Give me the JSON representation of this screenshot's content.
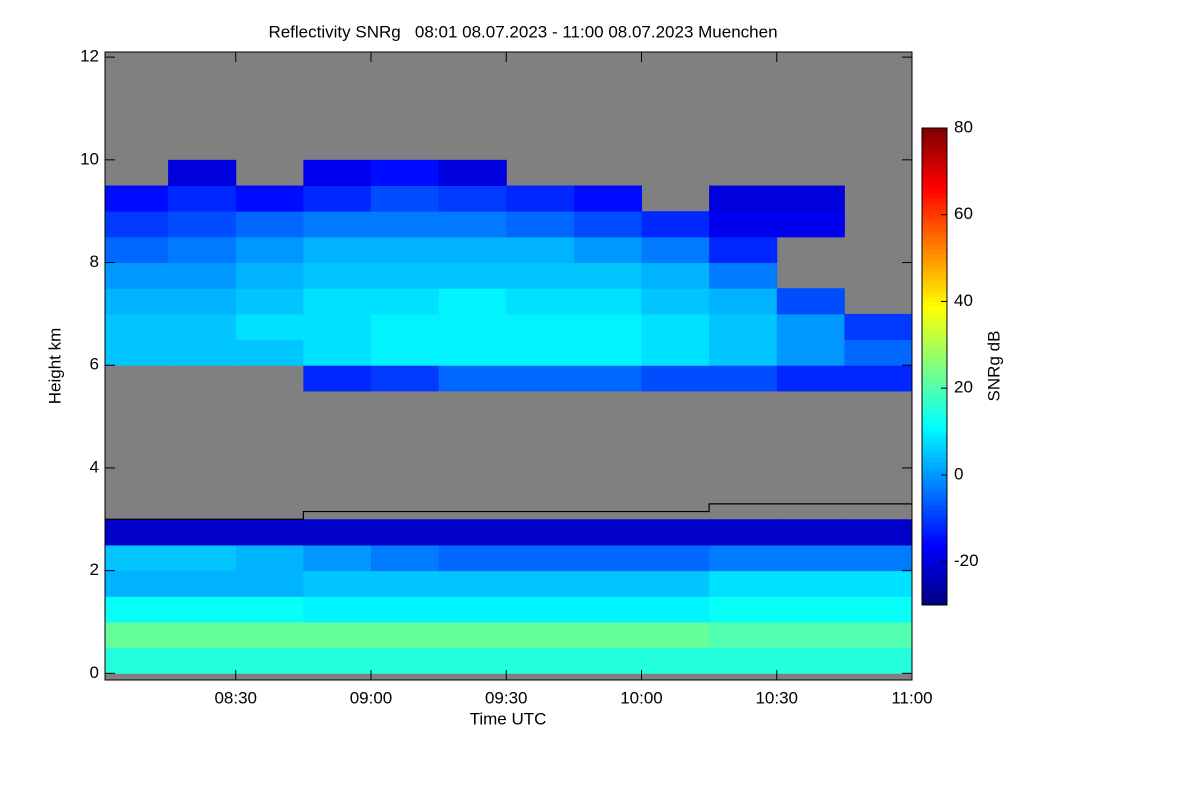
{
  "chart_data": {
    "type": "heatmap",
    "title": "Reflectivity SNRg   08:01 08.07.2023 - 11:00 08.07.2023 Muenchen",
    "xlabel": "Time UTC",
    "ylabel": "Height km",
    "colorbar_label": "SNRg dB",
    "colormap": "jet",
    "background": "#808080",
    "line_color": "#000000",
    "xlim": [
      8.0167,
      11.0
    ],
    "xticks": [
      {
        "value": 8.5,
        "label": "08:30"
      },
      {
        "value": 9.0,
        "label": "09:00"
      },
      {
        "value": 9.5,
        "label": "09:30"
      },
      {
        "value": 10.0,
        "label": "10:00"
      },
      {
        "value": 10.5,
        "label": "10:30"
      },
      {
        "value": 11.0,
        "label": "11:00"
      }
    ],
    "ylim": [
      -0.13,
      12.1
    ],
    "yticks": [
      0,
      2,
      4,
      6,
      8,
      10,
      12
    ],
    "zlim": [
      -30,
      80
    ],
    "zticks": [
      -20,
      0,
      20,
      40,
      60,
      80
    ],
    "x_edges": [
      8.0,
      8.25,
      8.5,
      8.75,
      9.0,
      9.25,
      9.5,
      9.75,
      10.0,
      10.25,
      10.5,
      10.75,
      11.0
    ],
    "y_edges": [
      0,
      0.5,
      1,
      1.5,
      2,
      2.5,
      3,
      3.5,
      4,
      4.5,
      5,
      5.5,
      6,
      6.5,
      7,
      7.5,
      8,
      8.5,
      9,
      9.5,
      10,
      10.5,
      11,
      11.5,
      12
    ],
    "z": [
      [
        15,
        15,
        15,
        15,
        15,
        15,
        15,
        15,
        15,
        15,
        15,
        15
      ],
      [
        22,
        22,
        22,
        22,
        22,
        22,
        22,
        22,
        22,
        20,
        20,
        20
      ],
      [
        12,
        12,
        12,
        10,
        10,
        10,
        10,
        10,
        10,
        12,
        12,
        12
      ],
      [
        3,
        3,
        3,
        5,
        5,
        5,
        5,
        5,
        5,
        8,
        8,
        8
      ],
      [
        5,
        5,
        3,
        0,
        -3,
        -5,
        -5,
        -5,
        -5,
        -3,
        -3,
        -3
      ],
      [
        -22,
        -22,
        -22,
        -22,
        -22,
        -22,
        -22,
        -22,
        -22,
        -22,
        -22,
        -22
      ],
      [
        null,
        null,
        null,
        null,
        null,
        null,
        null,
        null,
        null,
        null,
        null,
        null
      ],
      [
        null,
        null,
        null,
        null,
        null,
        null,
        null,
        null,
        null,
        null,
        null,
        null
      ],
      [
        null,
        null,
        null,
        null,
        null,
        null,
        null,
        null,
        null,
        null,
        null,
        null
      ],
      [
        null,
        null,
        null,
        null,
        null,
        null,
        null,
        null,
        null,
        null,
        null,
        null
      ],
      [
        null,
        null,
        null,
        null,
        null,
        null,
        null,
        null,
        null,
        null,
        null,
        null
      ],
      [
        null,
        null,
        null,
        -12,
        -10,
        -5,
        -5,
        -5,
        -8,
        -8,
        -12,
        -12
      ],
      [
        5,
        5,
        5,
        8,
        10,
        10,
        10,
        10,
        8,
        5,
        0,
        -5
      ],
      [
        5,
        5,
        8,
        8,
        10,
        10,
        10,
        10,
        8,
        5,
        0,
        -10
      ],
      [
        3,
        3,
        5,
        8,
        8,
        10,
        8,
        8,
        5,
        3,
        -8,
        null
      ],
      [
        0,
        0,
        3,
        5,
        5,
        5,
        5,
        5,
        3,
        -3,
        null,
        null
      ],
      [
        -5,
        -3,
        0,
        3,
        3,
        3,
        3,
        0,
        -3,
        -12,
        null,
        null
      ],
      [
        -10,
        -8,
        -5,
        -3,
        -3,
        -3,
        -5,
        -8,
        -12,
        -18,
        -18,
        null
      ],
      [
        -15,
        -12,
        -15,
        -12,
        -8,
        -10,
        -12,
        -15,
        null,
        -20,
        -20,
        null
      ],
      [
        null,
        -20,
        null,
        -18,
        -15,
        -20,
        null,
        null,
        null,
        null,
        null,
        null
      ],
      [
        null,
        null,
        null,
        null,
        null,
        null,
        null,
        null,
        null,
        null,
        null,
        null
      ],
      [
        null,
        null,
        null,
        null,
        null,
        null,
        null,
        null,
        null,
        null,
        null,
        null
      ],
      [
        null,
        null,
        null,
        null,
        null,
        null,
        null,
        null,
        null,
        null,
        null,
        null
      ],
      [
        null,
        null,
        null,
        null,
        null,
        null,
        null,
        null,
        null,
        null,
        null,
        null
      ]
    ],
    "line": {
      "x": [
        8.0167,
        8.75,
        8.75,
        10.25,
        10.25,
        11.0
      ],
      "y": [
        3.0,
        3.0,
        3.15,
        3.15,
        3.3,
        3.3
      ]
    }
  }
}
